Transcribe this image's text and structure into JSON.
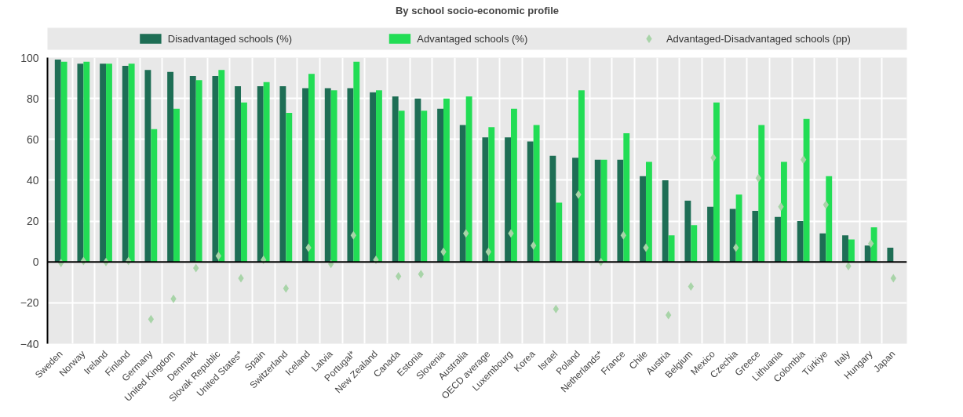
{
  "chart_data": {
    "type": "bar",
    "title": "By school socio-economic profile",
    "categories": [
      "Sweden",
      "Norway",
      "Ireland",
      "Finland",
      "Germany",
      "United Kingdom",
      "Denmark",
      "Slovak Republic",
      "United States*",
      "Spain",
      "Switzerland",
      "Iceland",
      "Latvia",
      "Portugal*",
      "New Zealand",
      "Canada",
      "Estonia",
      "Slovenia",
      "Australia",
      "OECD average",
      "Luxembourg",
      "Korea",
      "Israel",
      "Poland",
      "Netherlands*",
      "France",
      "Chile",
      "Austria",
      "Belgium",
      "Mexico",
      "Czechia",
      "Greece",
      "Lithuania",
      "Colombia",
      "Türkiye",
      "Italy",
      "Hungary",
      "Japan"
    ],
    "series": [
      {
        "name": "Disadvantaged schools (%)",
        "color": "#1e6e55",
        "values": [
          99,
          97,
          97,
          96,
          94,
          93,
          91,
          91,
          86,
          86,
          86,
          85,
          85,
          85,
          83,
          81,
          80,
          75,
          67,
          61,
          61,
          59,
          52,
          51,
          50,
          50,
          42,
          40,
          30,
          27,
          26,
          25,
          22,
          20,
          14,
          13,
          8,
          7
        ]
      },
      {
        "name": "Advantaged schools (%)",
        "color": "#22dd55",
        "values": [
          98,
          98,
          97,
          97,
          65,
          75,
          89,
          94,
          78,
          88,
          73,
          92,
          84,
          98,
          84,
          74,
          74,
          80,
          81,
          66,
          75,
          67,
          29,
          84,
          50,
          63,
          49,
          13,
          18,
          78,
          33,
          67,
          49,
          70,
          42,
          11,
          17,
          null
        ]
      },
      {
        "name": "Advantaged-Disadvantaged schools (pp)",
        "type": "scatter",
        "marker": "diamond",
        "color": "#a8d4a8",
        "values": [
          -0.5,
          0.5,
          0,
          0.5,
          -28,
          -18,
          -3,
          3,
          -8,
          1,
          -13,
          7,
          -1,
          13,
          1,
          -7,
          -6,
          5,
          14,
          5,
          14,
          8,
          -23,
          33,
          0,
          13,
          7,
          -26,
          -12,
          51,
          7,
          41,
          27,
          50,
          28,
          -2,
          9,
          -8
        ]
      }
    ],
    "ylim": [
      -40,
      100
    ],
    "yticks": [
      -40,
      -20,
      0,
      20,
      40,
      60,
      80,
      100
    ],
    "grid": true,
    "legend": "top"
  }
}
